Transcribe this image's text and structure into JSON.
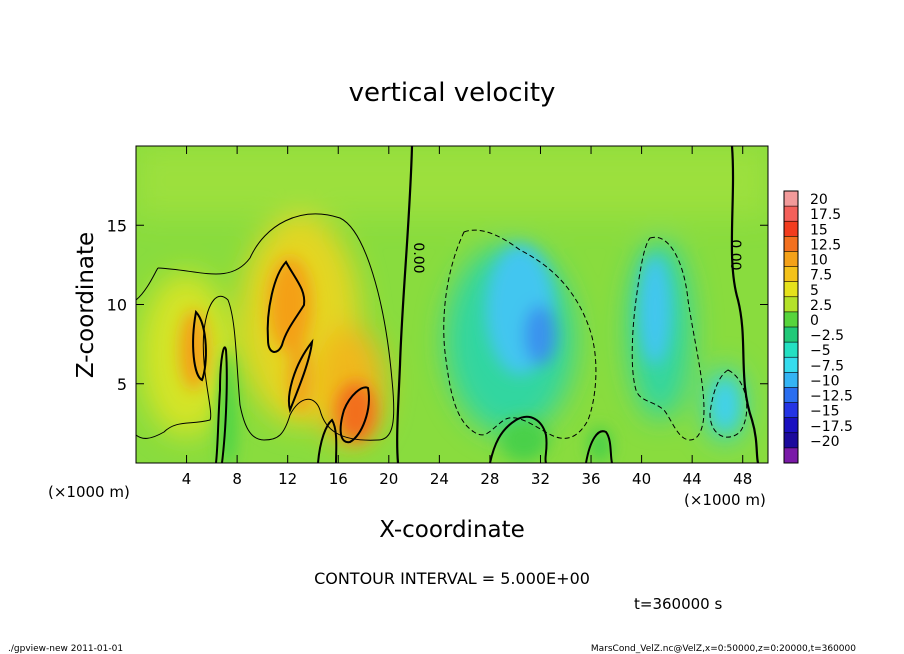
{
  "chart_data": {
    "type": "heatmap",
    "title": "vertical velocity",
    "xlabel": "X-coordinate",
    "ylabel": "Z-coordinate",
    "x_unit_label": "(×1000 m)",
    "y_unit_label": "(×1000 m)",
    "x_range": [
      0,
      50
    ],
    "y_range": [
      0,
      20
    ],
    "x_ticks": [
      4,
      8,
      12,
      16,
      20,
      24,
      28,
      32,
      36,
      40,
      44,
      48
    ],
    "y_ticks": [
      5,
      10,
      15
    ],
    "colorbar": {
      "labels": [
        "20",
        "17.5",
        "15",
        "12.5",
        "10",
        "7.5",
        "5",
        "2.5",
        "0",
        "−2.5",
        "−5",
        "−7.5",
        "−10",
        "−12.5",
        "−15",
        "−17.5",
        "−20"
      ],
      "colors": [
        "#f29a9a",
        "#f4605a",
        "#f23c1e",
        "#f3701f",
        "#f4a118",
        "#f4c21a",
        "#e6e21c",
        "#b4e22a",
        "#57d43c",
        "#21c978",
        "#24e0c2",
        "#36dcee",
        "#34b4f4",
        "#2a6ef0",
        "#2434e4",
        "#1a10c0",
        "#1c0a9c",
        "#7a1aa8"
      ]
    },
    "contour_labels": [
      "0.00",
      "0.00"
    ],
    "contour_interval_text": "CONTOUR INTERVAL = 5.000E+00",
    "time_text": "t=360000 s"
  },
  "footer": {
    "left": "./gpview-new   2011-01-01",
    "right": "MarsCond_VelZ.nc@VelZ,x=0:50000,z=0:20000,t=360000"
  }
}
